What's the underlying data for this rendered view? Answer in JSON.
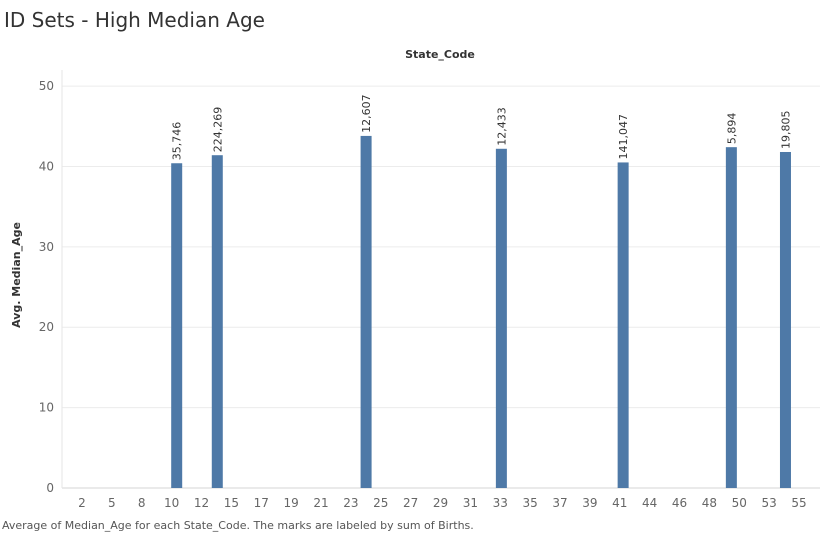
{
  "title": "ID Sets - High Median Age",
  "caption": "Average of Median_Age for each State_Code.  The marks are labeled by sum of Births.",
  "colors": {
    "bar": "#4e79a7",
    "grid": "#ececec",
    "tick_text": "#666666",
    "axis_title": "#333333"
  },
  "chart_data": {
    "type": "bar",
    "column_header": "State_Code",
    "ylabel": "Avg. Median_Age",
    "xlabel": "",
    "ylim": [
      0,
      52
    ],
    "yticks": [
      0,
      10,
      20,
      30,
      40,
      50
    ],
    "x_tick_labels": [
      "2",
      "5",
      "8",
      "10",
      "12",
      "15",
      "17",
      "19",
      "21",
      "23",
      "25",
      "27",
      "29",
      "31",
      "33",
      "35",
      "37",
      "39",
      "41",
      "44",
      "46",
      "48",
      "50",
      "53",
      "55"
    ],
    "bars": [
      {
        "category": "9",
        "value": 40.4,
        "label": "35,746"
      },
      {
        "category": "12",
        "value": 41.4,
        "label": "224,269"
      },
      {
        "category": "23",
        "value": 43.8,
        "label": "12,607"
      },
      {
        "category": "33",
        "value": 42.2,
        "label": "12,433"
      },
      {
        "category": "42",
        "value": 40.5,
        "label": "141,047"
      },
      {
        "category": "50",
        "value": 42.4,
        "label": "5,894"
      },
      {
        "category": "54",
        "value": 41.8,
        "label": "19,805"
      }
    ],
    "grid": true
  }
}
